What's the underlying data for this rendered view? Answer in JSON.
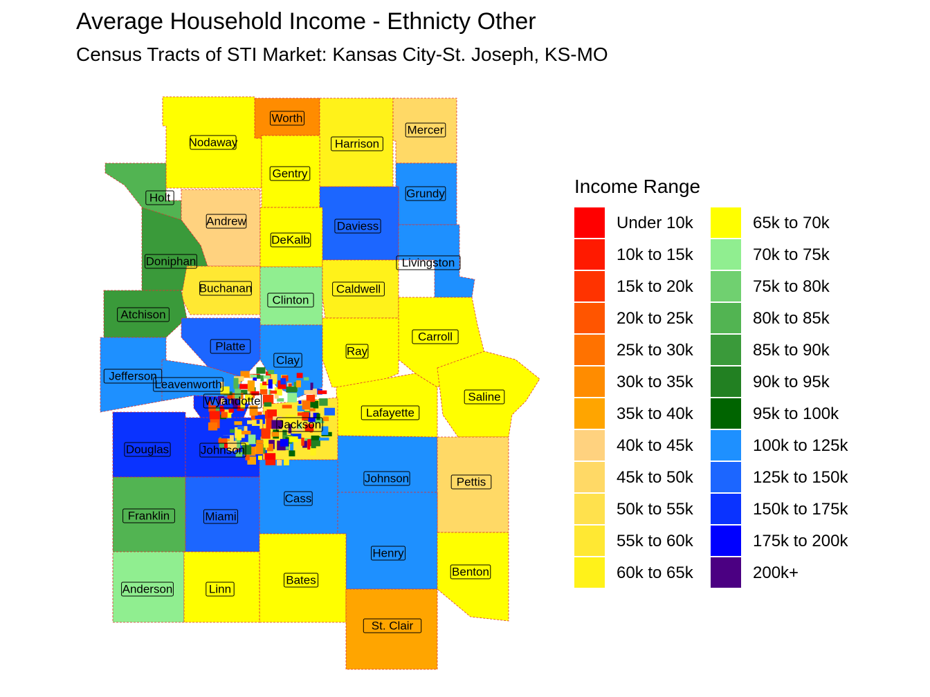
{
  "header": {
    "title": "Average Household Income - Ethnicty Other",
    "subtitle": "Census Tracts of STI Market: Kansas City-St. Joseph, KS-MO"
  },
  "legend": {
    "title": "Income Range",
    "items": [
      {
        "label": "Under 10k",
        "color": "#FF0000"
      },
      {
        "label": "10k to 15k",
        "color": "#FF1A00"
      },
      {
        "label": "15k to 20k",
        "color": "#FF3300"
      },
      {
        "label": "20k to 25k",
        "color": "#FF5500"
      },
      {
        "label": "25k to 30k",
        "color": "#FF7200"
      },
      {
        "label": "30k to 35k",
        "color": "#FF8C00"
      },
      {
        "label": "35k to 40k",
        "color": "#FFA500"
      },
      {
        "label": "40k to 45k",
        "color": "#FFD27F"
      },
      {
        "label": "45k to 50k",
        "color": "#FFD966"
      },
      {
        "label": "50k to 55k",
        "color": "#FFE14D"
      },
      {
        "label": "55k to 60k",
        "color": "#FFE833"
      },
      {
        "label": "60k to 65k",
        "color": "#FFF21A"
      },
      {
        "label": "65k to 70k",
        "color": "#FFFF00"
      },
      {
        "label": "70k to 75k",
        "color": "#90EE90"
      },
      {
        "label": "75k to 80k",
        "color": "#70D070"
      },
      {
        "label": "80k to 85k",
        "color": "#52B452"
      },
      {
        "label": "85k to 90k",
        "color": "#3A9A3A"
      },
      {
        "label": "90k to 95k",
        "color": "#228022"
      },
      {
        "label": "95k to 100k",
        "color": "#006400"
      },
      {
        "label": "100k to 125k",
        "color": "#1E90FF"
      },
      {
        "label": "125k to 150k",
        "color": "#1C66FF"
      },
      {
        "label": "150k to 175k",
        "color": "#0A33FF"
      },
      {
        "label": "175k to 200k",
        "color": "#0000FF"
      },
      {
        "label": "200k+",
        "color": "#4B0082"
      }
    ]
  },
  "map": {
    "border_color": "#E03030",
    "counties": [
      {
        "name": "Worth",
        "color": "#FF8C00"
      },
      {
        "name": "Harrison",
        "color": "#FFF21A"
      },
      {
        "name": "Mercer",
        "color": "#FFD966"
      },
      {
        "name": "Nodaway",
        "color": "#FFFF00"
      },
      {
        "name": "Gentry",
        "color": "#FFFF00"
      },
      {
        "name": "Grundy",
        "color": "#1E90FF"
      },
      {
        "name": "Holt",
        "color": "#52B452"
      },
      {
        "name": "Andrew",
        "color": "#FFD27F"
      },
      {
        "name": "Daviess",
        "color": "#1C66FF"
      },
      {
        "name": "DeKalb",
        "color": "#FFFF00"
      },
      {
        "name": "Livingston",
        "color": "#1E90FF"
      },
      {
        "name": "Doniphan",
        "color": "#3A9A3A"
      },
      {
        "name": "Buchanan",
        "color": "#FFE833"
      },
      {
        "name": "Clinton",
        "color": "#90EE90"
      },
      {
        "name": "Caldwell",
        "color": "#FFF21A"
      },
      {
        "name": "Atchison",
        "color": "#3A9A3A"
      },
      {
        "name": "Carroll",
        "color": "#FFFF00"
      },
      {
        "name": "Platte",
        "color": "#1C66FF"
      },
      {
        "name": "Ray",
        "color": "#FFFF00"
      },
      {
        "name": "Clay",
        "color": "#1E90FF"
      },
      {
        "name": "Jefferson",
        "color": "#1E90FF"
      },
      {
        "name": "Leavenworth",
        "color": "#1E90FF"
      },
      {
        "name": "Wyandotte",
        "color": "#0A33FF"
      },
      {
        "name": "Saline",
        "color": "#FFFF00"
      },
      {
        "name": "Lafayette",
        "color": "#FFFF00"
      },
      {
        "name": "Jackson",
        "color": "#FFE833"
      },
      {
        "name": "Douglas",
        "color": "#0A33FF"
      },
      {
        "name": "Johnson",
        "color": "#0A33FF"
      },
      {
        "name": "Johnson",
        "color": "#1E90FF"
      },
      {
        "name": "Pettis",
        "color": "#FFD966"
      },
      {
        "name": "Cass",
        "color": "#1E90FF"
      },
      {
        "name": "Franklin",
        "color": "#52B452"
      },
      {
        "name": "Miami",
        "color": "#1C66FF"
      },
      {
        "name": "Henry",
        "color": "#1E90FF"
      },
      {
        "name": "Benton",
        "color": "#FFFF00"
      },
      {
        "name": "Bates",
        "color": "#FFFF00"
      },
      {
        "name": "Anderson",
        "color": "#90EE90"
      },
      {
        "name": "Linn",
        "color": "#FFFF00"
      },
      {
        "name": "St. Clair",
        "color": "#FFA500"
      }
    ]
  }
}
